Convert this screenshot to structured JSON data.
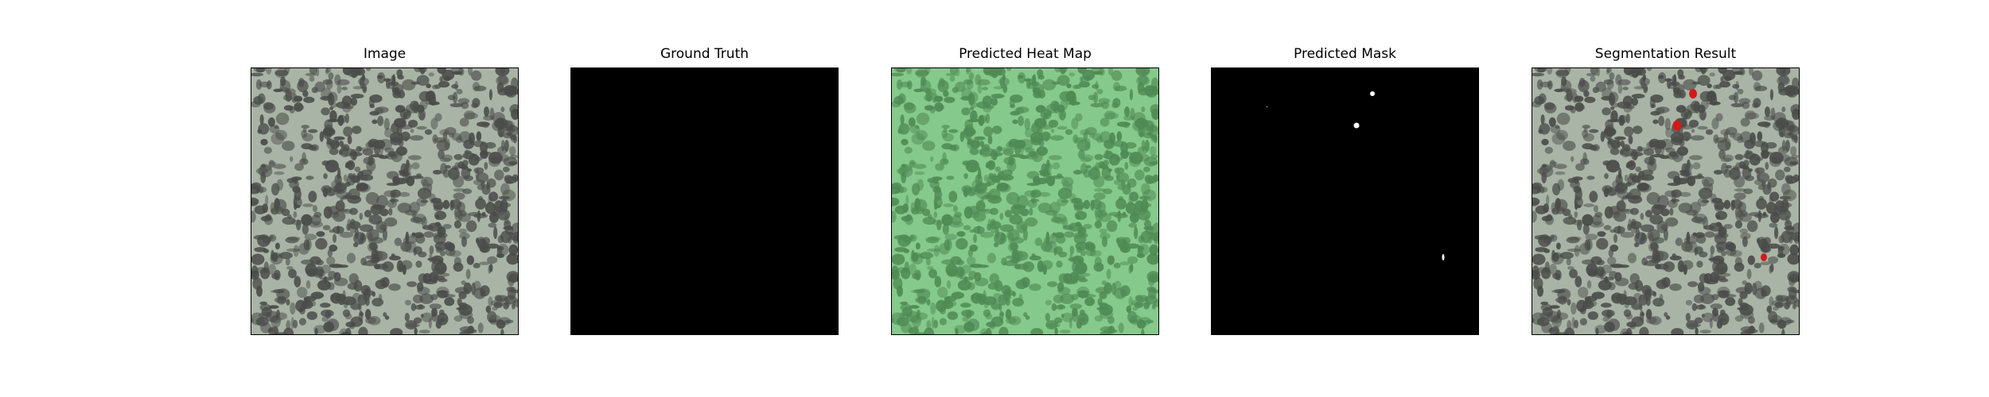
{
  "panels": [
    {
      "title": "Image"
    },
    {
      "title": "Ground Truth"
    },
    {
      "title": "Predicted Heat Map"
    },
    {
      "title": "Predicted Mask"
    },
    {
      "title": "Segmentation Result"
    }
  ],
  "colors": {
    "texture_light": "#a9b4a6",
    "texture_dark": "#4a4c49",
    "heatmap_light": "#86c98c",
    "heatmap_dark": "#4f8a54",
    "mask_background": "#000000",
    "mask_foreground": "#ffffff",
    "segmentation_overlay": "#d11a1a"
  }
}
